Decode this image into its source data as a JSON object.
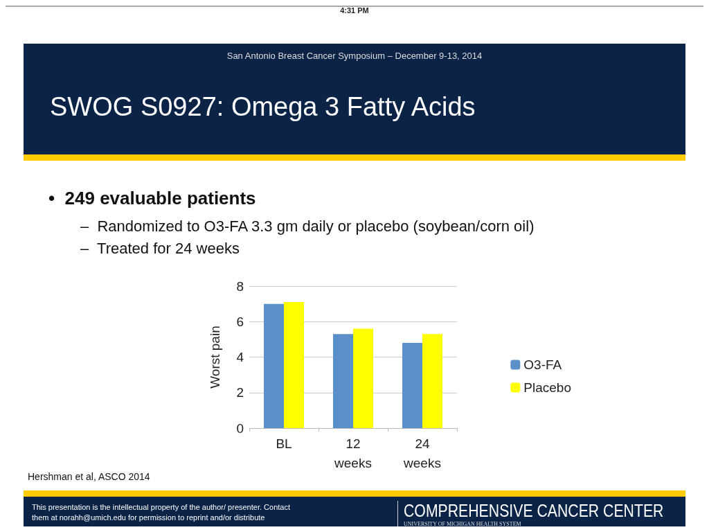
{
  "chart_data": {
    "type": "bar",
    "title": "SWOG S0927: Omega 3 Fatty Acids",
    "subtitle": "San Antonio Breast Cancer Symposium – December 9-13, 2014",
    "ylabel": "Worst pain",
    "categories": [
      "BL",
      "12\nweeks",
      "24\nweeks"
    ],
    "series": [
      {
        "name": "O3-FA",
        "color": "#5b8fc9",
        "values": [
          7.0,
          5.3,
          4.8
        ]
      },
      {
        "name": "Placebo",
        "color": "#ffff00",
        "values": [
          7.1,
          5.6,
          5.3
        ]
      }
    ],
    "ylim": [
      0,
      8
    ],
    "yticks": [
      0,
      2,
      4,
      6,
      8
    ],
    "grid": "y",
    "legend": "right",
    "annotations": [
      "4:31 PM",
      "•  249 evaluable patients",
      "–  Randomized to O3-FA 3.3 gm daily or placebo (soybean/corn oil)",
      "–  Treated for 24 weeks",
      "Hershman et al, ASCO 2014",
      "This presentation is the intellectual property of the author/ presenter.  Contact them at norahh@umich.edu for permission to  reprint and/or distribute",
      "COMPREHENSIVE CANCER CENTER",
      "UNIVERSITY OF MICHIGAN HEALTH SYSTEM"
    ]
  }
}
